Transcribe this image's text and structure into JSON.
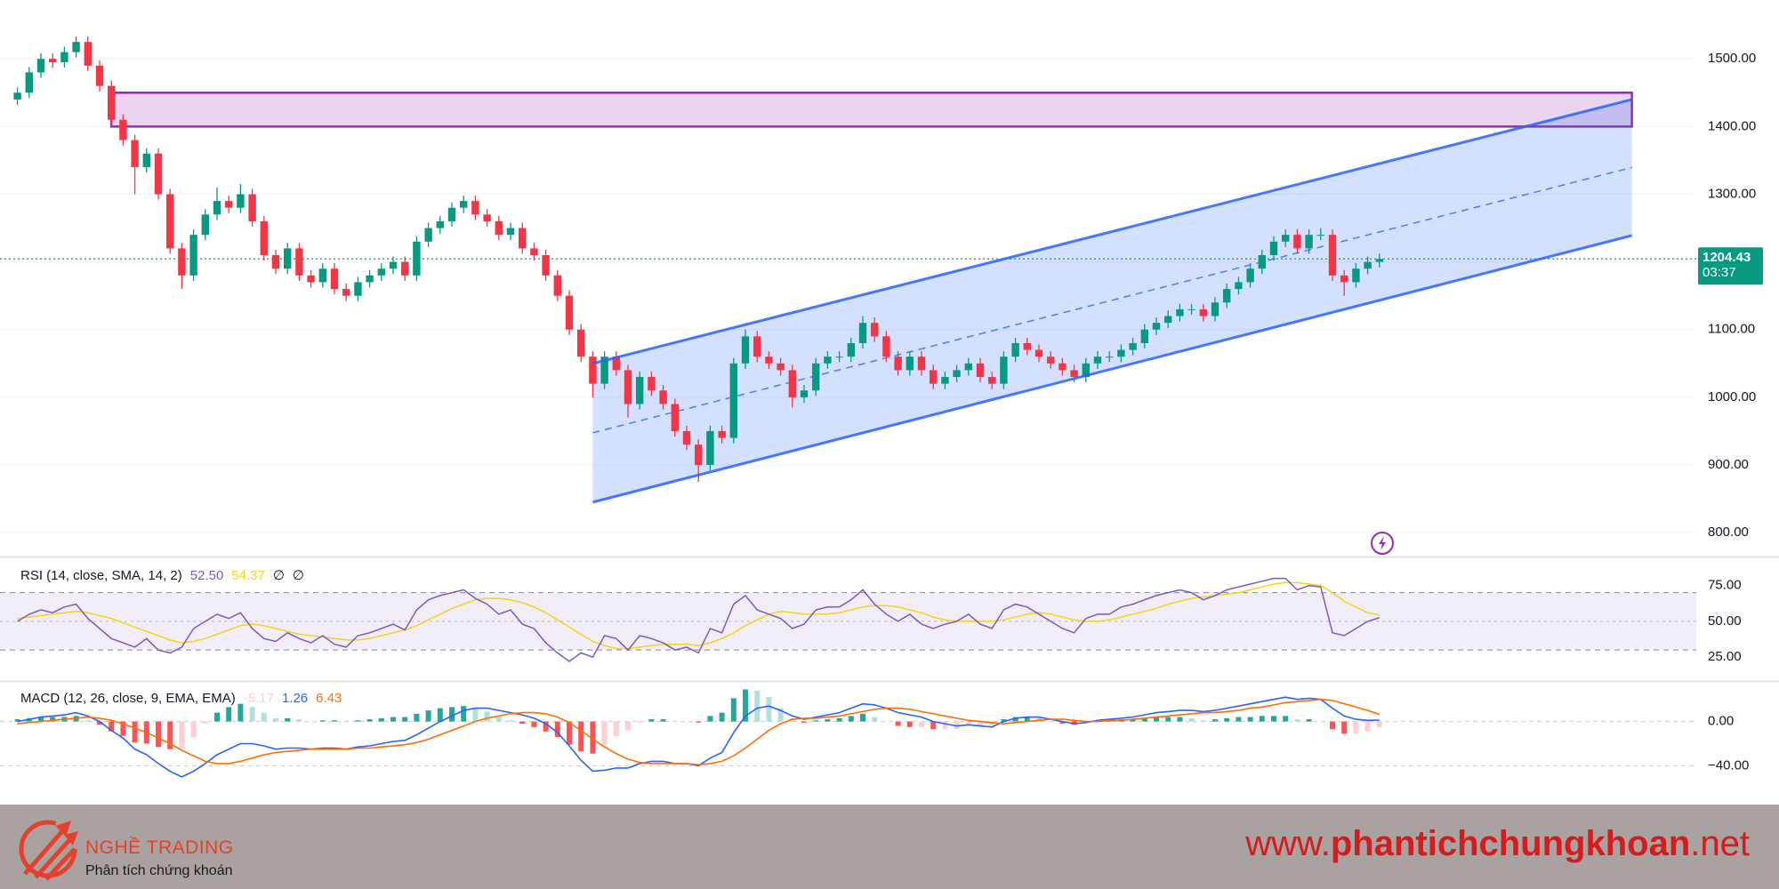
{
  "chart_data": [
    {
      "type": "candlestick",
      "up_color": "#089981",
      "down_color": "#f23645",
      "ylim": [
        766,
        1587
      ],
      "yticks": [
        {
          "value": 800,
          "label": "800.00"
        },
        {
          "value": 900,
          "label": "900.00"
        },
        {
          "value": 1000,
          "label": "1000.00"
        },
        {
          "value": 1100,
          "label": "1100.00"
        },
        {
          "value": 1200,
          "label": "1200.00"
        },
        {
          "value": 1300,
          "label": "1300.00"
        },
        {
          "value": 1400,
          "label": "1400.00"
        },
        {
          "value": 1500,
          "label": "1500.00"
        }
      ],
      "grid": true,
      "countdown": "03:37",
      "open": [
        1440,
        1450,
        1480,
        1500,
        1495,
        1510,
        1525,
        1490,
        1460,
        1410,
        1380,
        1340,
        1360,
        1300,
        1220,
        1180,
        1240,
        1270,
        1290,
        1280,
        1300,
        1260,
        1210,
        1190,
        1220,
        1180,
        1170,
        1190,
        1160,
        1150,
        1170,
        1180,
        1190,
        1200,
        1180,
        1230,
        1250,
        1260,
        1280,
        1290,
        1270,
        1260,
        1240,
        1250,
        1220,
        1210,
        1180,
        1150,
        1100,
        1060,
        1020,
        1060,
        1040,
        990,
        1030,
        1010,
        990,
        950,
        930,
        900,
        950,
        940,
        1050,
        1090,
        1060,
        1050,
        1040,
        1000,
        1010,
        1050,
        1060,
        1060,
        1080,
        1110,
        1090,
        1060,
        1040,
        1060,
        1040,
        1020,
        1030,
        1040,
        1050,
        1030,
        1020,
        1060,
        1080,
        1070,
        1060,
        1050,
        1040,
        1030,
        1050,
        1060,
        1060,
        1070,
        1080,
        1100,
        1110,
        1120,
        1130,
        1130,
        1120,
        1140,
        1160,
        1170,
        1190,
        1210,
        1230,
        1240,
        1220,
        1240,
        1240,
        1180,
        1170,
        1190,
        1200
      ],
      "high": [
        1458,
        1488,
        1508,
        1508,
        1518,
        1533,
        1533,
        1498,
        1468,
        1418,
        1388,
        1368,
        1368,
        1308,
        1228,
        1248,
        1278,
        1310,
        1298,
        1315,
        1308,
        1268,
        1218,
        1228,
        1228,
        1188,
        1198,
        1198,
        1168,
        1178,
        1188,
        1198,
        1208,
        1208,
        1238,
        1258,
        1268,
        1288,
        1298,
        1298,
        1278,
        1268,
        1258,
        1258,
        1228,
        1218,
        1188,
        1158,
        1108,
        1068,
        1068,
        1068,
        1048,
        1038,
        1038,
        1018,
        998,
        958,
        938,
        958,
        958,
        1058,
        1100,
        1098,
        1068,
        1058,
        1048,
        1018,
        1058,
        1068,
        1068,
        1088,
        1120,
        1118,
        1098,
        1068,
        1068,
        1068,
        1048,
        1038,
        1048,
        1058,
        1058,
        1038,
        1068,
        1088,
        1088,
        1078,
        1068,
        1058,
        1048,
        1058,
        1068,
        1068,
        1078,
        1088,
        1108,
        1118,
        1128,
        1138,
        1138,
        1138,
        1148,
        1168,
        1178,
        1198,
        1218,
        1238,
        1248,
        1248,
        1248,
        1250,
        1248,
        1188,
        1198,
        1208,
        1212
      ],
      "low": [
        1432,
        1442,
        1472,
        1487,
        1487,
        1502,
        1482,
        1452,
        1402,
        1372,
        1300,
        1332,
        1292,
        1212,
        1160,
        1172,
        1232,
        1262,
        1272,
        1272,
        1252,
        1202,
        1182,
        1182,
        1172,
        1162,
        1162,
        1152,
        1142,
        1142,
        1162,
        1172,
        1182,
        1172,
        1172,
        1222,
        1242,
        1252,
        1272,
        1262,
        1252,
        1232,
        1232,
        1212,
        1202,
        1172,
        1142,
        1092,
        1052,
        1000,
        1012,
        1032,
        970,
        982,
        1002,
        982,
        942,
        922,
        875,
        892,
        932,
        932,
        1042,
        1052,
        1042,
        1032,
        985,
        992,
        1002,
        1042,
        1052,
        1052,
        1072,
        1082,
        1052,
        1032,
        1032,
        1032,
        1012,
        1012,
        1022,
        1032,
        1022,
        1012,
        1012,
        1052,
        1062,
        1052,
        1042,
        1032,
        1022,
        1022,
        1042,
        1052,
        1052,
        1062,
        1072,
        1092,
        1102,
        1112,
        1122,
        1112,
        1112,
        1132,
        1152,
        1162,
        1182,
        1202,
        1222,
        1212,
        1212,
        1232,
        1172,
        1150,
        1162,
        1182,
        1192
      ],
      "close": [
        1450,
        1480,
        1500,
        1495,
        1510,
        1525,
        1490,
        1460,
        1410,
        1380,
        1340,
        1360,
        1300,
        1220,
        1180,
        1240,
        1270,
        1290,
        1280,
        1300,
        1260,
        1210,
        1190,
        1220,
        1180,
        1170,
        1190,
        1160,
        1150,
        1170,
        1180,
        1190,
        1200,
        1180,
        1230,
        1250,
        1260,
        1280,
        1290,
        1270,
        1260,
        1240,
        1250,
        1220,
        1210,
        1180,
        1150,
        1100,
        1060,
        1020,
        1060,
        1040,
        990,
        1030,
        1010,
        990,
        950,
        930,
        900,
        950,
        940,
        1050,
        1090,
        1060,
        1050,
        1040,
        1000,
        1010,
        1050,
        1060,
        1060,
        1080,
        1110,
        1090,
        1060,
        1040,
        1060,
        1040,
        1020,
        1030,
        1040,
        1050,
        1030,
        1020,
        1060,
        1080,
        1070,
        1060,
        1050,
        1040,
        1030,
        1050,
        1060,
        1060,
        1070,
        1080,
        1100,
        1110,
        1120,
        1130,
        1130,
        1120,
        1140,
        1160,
        1170,
        1190,
        1210,
        1230,
        1240,
        1220,
        1240,
        1240,
        1180,
        1170,
        1190,
        1200,
        1204.43
      ],
      "rectangle": {
        "x": [
          8,
          137.5
        ],
        "y": [
          1400,
          1450
        ],
        "color": "#9c27b0"
      },
      "channel": {
        "x": [
          49,
          137.5
        ],
        "lower": [
          845,
          1239
        ],
        "upper": [
          1050,
          1440
        ],
        "color": "#2962ff"
      }
    },
    {
      "type": "line",
      "title": "RSI (14, close, SMA, 14, 2)",
      "flags": [
        "∅",
        "∅"
      ],
      "ylim": [
        9,
        94
      ],
      "yticks": [
        {
          "value": 25,
          "label": "25.00"
        },
        {
          "value": 50,
          "label": "50.00"
        },
        {
          "value": 75,
          "label": "75.00"
        }
      ],
      "grid": false,
      "bands": [
        70,
        50,
        30
      ],
      "band_color": "#7e57c2",
      "series": [
        {
          "color": "#7e57c2",
          "last_label": "52.50",
          "values": [
            50,
            55,
            58,
            56,
            60,
            62,
            52,
            45,
            38,
            35,
            32,
            38,
            30,
            28,
            32,
            45,
            50,
            55,
            52,
            56,
            45,
            38,
            36,
            42,
            38,
            35,
            40,
            34,
            32,
            40,
            42,
            45,
            48,
            44,
            58,
            65,
            68,
            70,
            72,
            66,
            62,
            55,
            58,
            48,
            45,
            35,
            28,
            22,
            28,
            25,
            40,
            38,
            30,
            40,
            38,
            35,
            30,
            32,
            28,
            45,
            42,
            62,
            68,
            58,
            55,
            52,
            45,
            48,
            58,
            60,
            60,
            65,
            72,
            62,
            55,
            50,
            55,
            48,
            45,
            48,
            50,
            55,
            48,
            45,
            58,
            62,
            60,
            55,
            50,
            45,
            42,
            52,
            55,
            55,
            60,
            62,
            65,
            68,
            70,
            72,
            70,
            65,
            68,
            72,
            74,
            76,
            78,
            80,
            80,
            72,
            75,
            74,
            42,
            40,
            45,
            50,
            52.5
          ]
        },
        {
          "color": "#f5d415",
          "values": [
            52,
            53,
            54,
            55,
            56,
            57,
            56,
            54,
            52,
            49,
            46,
            43,
            40,
            37,
            35,
            36,
            38,
            41,
            44,
            47,
            48,
            47,
            45,
            43,
            41,
            40,
            39,
            38,
            37,
            37,
            38,
            40,
            42,
            44,
            47,
            51,
            55,
            59,
            62,
            65,
            66,
            66,
            65,
            63,
            60,
            56,
            51,
            46,
            41,
            36,
            33,
            31,
            31,
            32,
            33,
            34,
            34,
            34,
            33,
            35,
            38,
            42,
            47,
            51,
            55,
            57,
            56,
            55,
            55,
            55,
            56,
            58,
            60,
            61,
            61,
            60,
            58,
            56,
            53,
            51,
            50,
            50,
            50,
            50,
            51,
            53,
            55,
            56,
            55,
            53,
            51,
            50,
            50,
            51,
            53,
            55,
            57,
            59,
            62,
            64,
            66,
            67,
            68,
            69,
            70,
            72,
            74,
            76,
            77,
            77,
            76,
            75,
            70,
            64,
            60,
            56,
            54.37
          ]
        }
      ]
    },
    {
      "type": "combo",
      "title": "MACD (12, 26, close, 9, EMA, EMA)",
      "ylim": [
        -75,
        35
      ],
      "yticks": [
        {
          "value": -40,
          "label": "−40.00"
        },
        {
          "value": 0,
          "label": "0.00"
        }
      ],
      "grid": true,
      "series": [
        {
          "style": "line",
          "color": "#2962ff",
          "values": [
            0,
            2,
            4,
            5,
            6,
            8,
            5,
            0,
            -8,
            -15,
            -25,
            -30,
            -38,
            -45,
            -50,
            -45,
            -38,
            -30,
            -25,
            -20,
            -20,
            -22,
            -25,
            -24,
            -24,
            -25,
            -24,
            -24,
            -25,
            -23,
            -22,
            -20,
            -18,
            -17,
            -12,
            -6,
            0,
            5,
            10,
            12,
            12,
            10,
            8,
            6,
            3,
            -2,
            -10,
            -22,
            -35,
            -45,
            -44,
            -42,
            -42,
            -38,
            -36,
            -36,
            -38,
            -38,
            -40,
            -33,
            -28,
            -10,
            5,
            12,
            14,
            10,
            5,
            2,
            4,
            6,
            8,
            12,
            16,
            15,
            12,
            8,
            6,
            4,
            0,
            -2,
            -4,
            -3,
            -4,
            -5,
            0,
            3,
            4,
            4,
            2,
            0,
            -2,
            -1,
            1,
            2,
            3,
            4,
            6,
            8,
            9,
            10,
            10,
            9,
            10,
            12,
            14,
            16,
            18,
            20,
            22,
            20,
            21,
            20,
            12,
            5,
            2,
            1,
            1.26
          ]
        },
        {
          "style": "line",
          "color": "#ff6d00",
          "values": [
            -2,
            -1,
            0,
            1,
            2,
            3,
            4,
            3,
            1,
            -2,
            -6,
            -10,
            -15,
            -20,
            -26,
            -31,
            -36,
            -38,
            -38,
            -36,
            -33,
            -30,
            -28,
            -27,
            -26,
            -25,
            -25,
            -25,
            -25,
            -24,
            -24,
            -23,
            -22,
            -21,
            -19,
            -16,
            -12,
            -8,
            -4,
            0,
            3,
            5,
            7,
            8,
            8,
            7,
            4,
            -1,
            -8,
            -16,
            -23,
            -29,
            -34,
            -37,
            -38,
            -38,
            -38,
            -38,
            -39,
            -38,
            -36,
            -31,
            -24,
            -16,
            -8,
            -2,
            2,
            3,
            3,
            4,
            5,
            7,
            9,
            11,
            12,
            12,
            11,
            9,
            7,
            5,
            3,
            1,
            0,
            -1,
            -2,
            -1,
            0,
            1,
            2,
            2,
            1,
            0,
            0,
            1,
            1,
            2,
            3,
            4,
            5,
            6,
            7,
            8,
            8,
            9,
            10,
            12,
            13,
            15,
            17,
            18,
            19,
            20,
            19,
            16,
            13,
            10,
            6.43
          ]
        },
        {
          "style": "histogram",
          "colors": {
            "up_strong": "#26a69a",
            "up_weak": "#b2dfdb",
            "down_strong": "#ff5252",
            "down_weak": "#ffcdd2"
          },
          "values": [
            2,
            3,
            4,
            4,
            4,
            5,
            1,
            -3,
            -9,
            -13,
            -19,
            -20,
            -23,
            -25,
            -24,
            -14,
            -2,
            8,
            13,
            16,
            13,
            8,
            3,
            3,
            2,
            0,
            1,
            1,
            0,
            1,
            2,
            3,
            4,
            4,
            7,
            10,
            12,
            13,
            14,
            12,
            9,
            5,
            1,
            -2,
            -5,
            -9,
            -14,
            -21,
            -27,
            -29,
            -21,
            -13,
            -8,
            -1,
            2,
            2,
            0,
            0,
            -1,
            5,
            8,
            21,
            29,
            28,
            22,
            12,
            3,
            -1,
            1,
            2,
            3,
            5,
            7,
            4,
            0,
            -4,
            -5,
            -5,
            -7,
            -7,
            -7,
            -4,
            -4,
            -4,
            2,
            4,
            4,
            3,
            0,
            -2,
            -3,
            -1,
            1,
            1,
            2,
            2,
            3,
            4,
            4,
            4,
            3,
            1,
            2,
            3,
            4,
            4,
            5,
            5,
            5,
            2,
            2,
            0,
            -7,
            -11,
            -11,
            -9,
            -5.17
          ]
        }
      ]
    }
  ],
  "footer": {
    "brand": "NGHỀ TRADING",
    "tagline": "Phân tích chứng khoán",
    "url_prefix": "www.",
    "url_main": "phantichchungkhoan",
    "url_suffix": ".net"
  }
}
